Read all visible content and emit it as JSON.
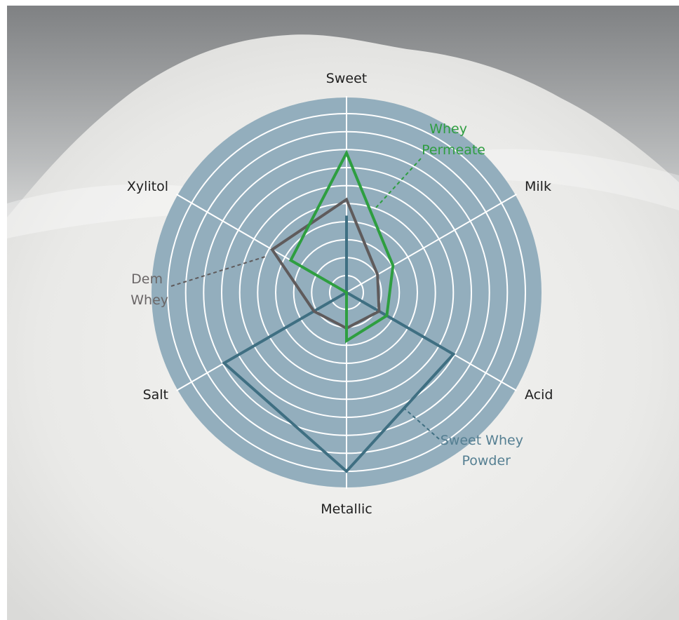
{
  "chart_data": {
    "type": "radar",
    "axes": [
      "Sweet",
      "Milk",
      "Acid",
      "Metallic",
      "Salt",
      "Xylitol"
    ],
    "scale": {
      "min": 0,
      "max": 10,
      "rings": 10
    },
    "series": [
      {
        "name_lines": [
          "Whey",
          "Permeate"
        ],
        "color": "#2e9e40",
        "values": [
          7.8,
          3.0,
          2.6,
          2.7,
          0.0,
          3.6
        ]
      },
      {
        "name_lines": [
          "Dem",
          "Whey"
        ],
        "color": "#5f5b5c",
        "values": [
          5.2,
          2.0,
          2.1,
          2.0,
          2.1,
          4.8
        ]
      },
      {
        "name_lines": [
          "Sweet Whey",
          "Powder"
        ],
        "color": "#3f6f82",
        "values": [
          4.3,
          0.0,
          6.9,
          10.0,
          7.9,
          0.0
        ]
      }
    ]
  },
  "colors": {
    "disc": "#93aebd",
    "grid": "#ffffff",
    "background_top": "#8c8e90",
    "powder": "#ececea"
  }
}
